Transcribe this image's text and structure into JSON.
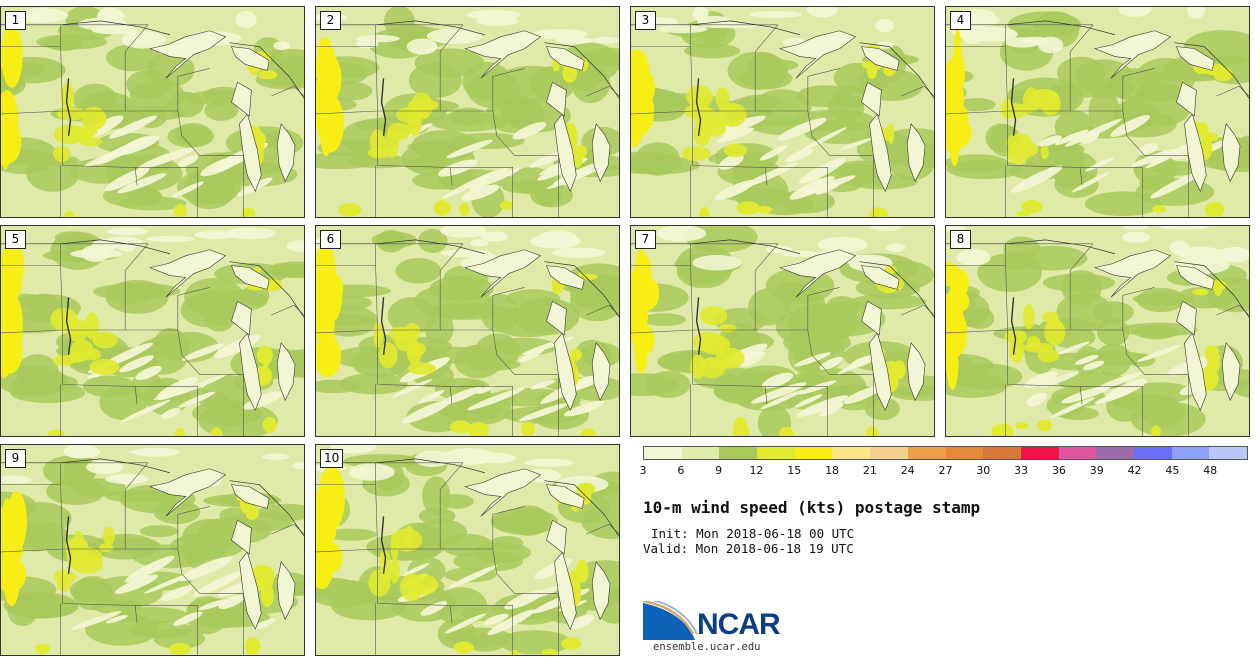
{
  "figure": {
    "title": "10-m wind speed (kts) postage stamp",
    "init": "Init: Mon 2018-06-18 00 UTC",
    "valid": "Valid: Mon 2018-06-18 19 UTC",
    "website": "ensemble.ucar.edu",
    "logo": "NCAR"
  },
  "panels": [
    {
      "label": "1"
    },
    {
      "label": "2"
    },
    {
      "label": "3"
    },
    {
      "label": "4"
    },
    {
      "label": "5"
    },
    {
      "label": "6"
    },
    {
      "label": "7"
    },
    {
      "label": "8"
    },
    {
      "label": "9"
    },
    {
      "label": "10"
    }
  ],
  "colorbar": {
    "ticks": [
      "3",
      "6",
      "9",
      "12",
      "15",
      "18",
      "21",
      "24",
      "27",
      "30",
      "33",
      "36",
      "39",
      "42",
      "45",
      "48"
    ],
    "colors": [
      "#f3f6d4",
      "#e0ecab",
      "#a9c95c",
      "#e1ea30",
      "#f7ee14",
      "#fbe58a",
      "#f2cf8d",
      "#ed9f4a",
      "#e48a36",
      "#d8793a",
      "#ee1446",
      "#e0559f",
      "#9b6ca8",
      "#6a6ff8",
      "#8ea3f8",
      "#b9c8f8"
    ]
  },
  "wind_colors": {
    "calm": "#f3f6d4",
    "light": "#dfe9a8",
    "moderate": "#a9c95c",
    "fresh": "#e1ea30",
    "strong": "#f7ee14"
  }
}
